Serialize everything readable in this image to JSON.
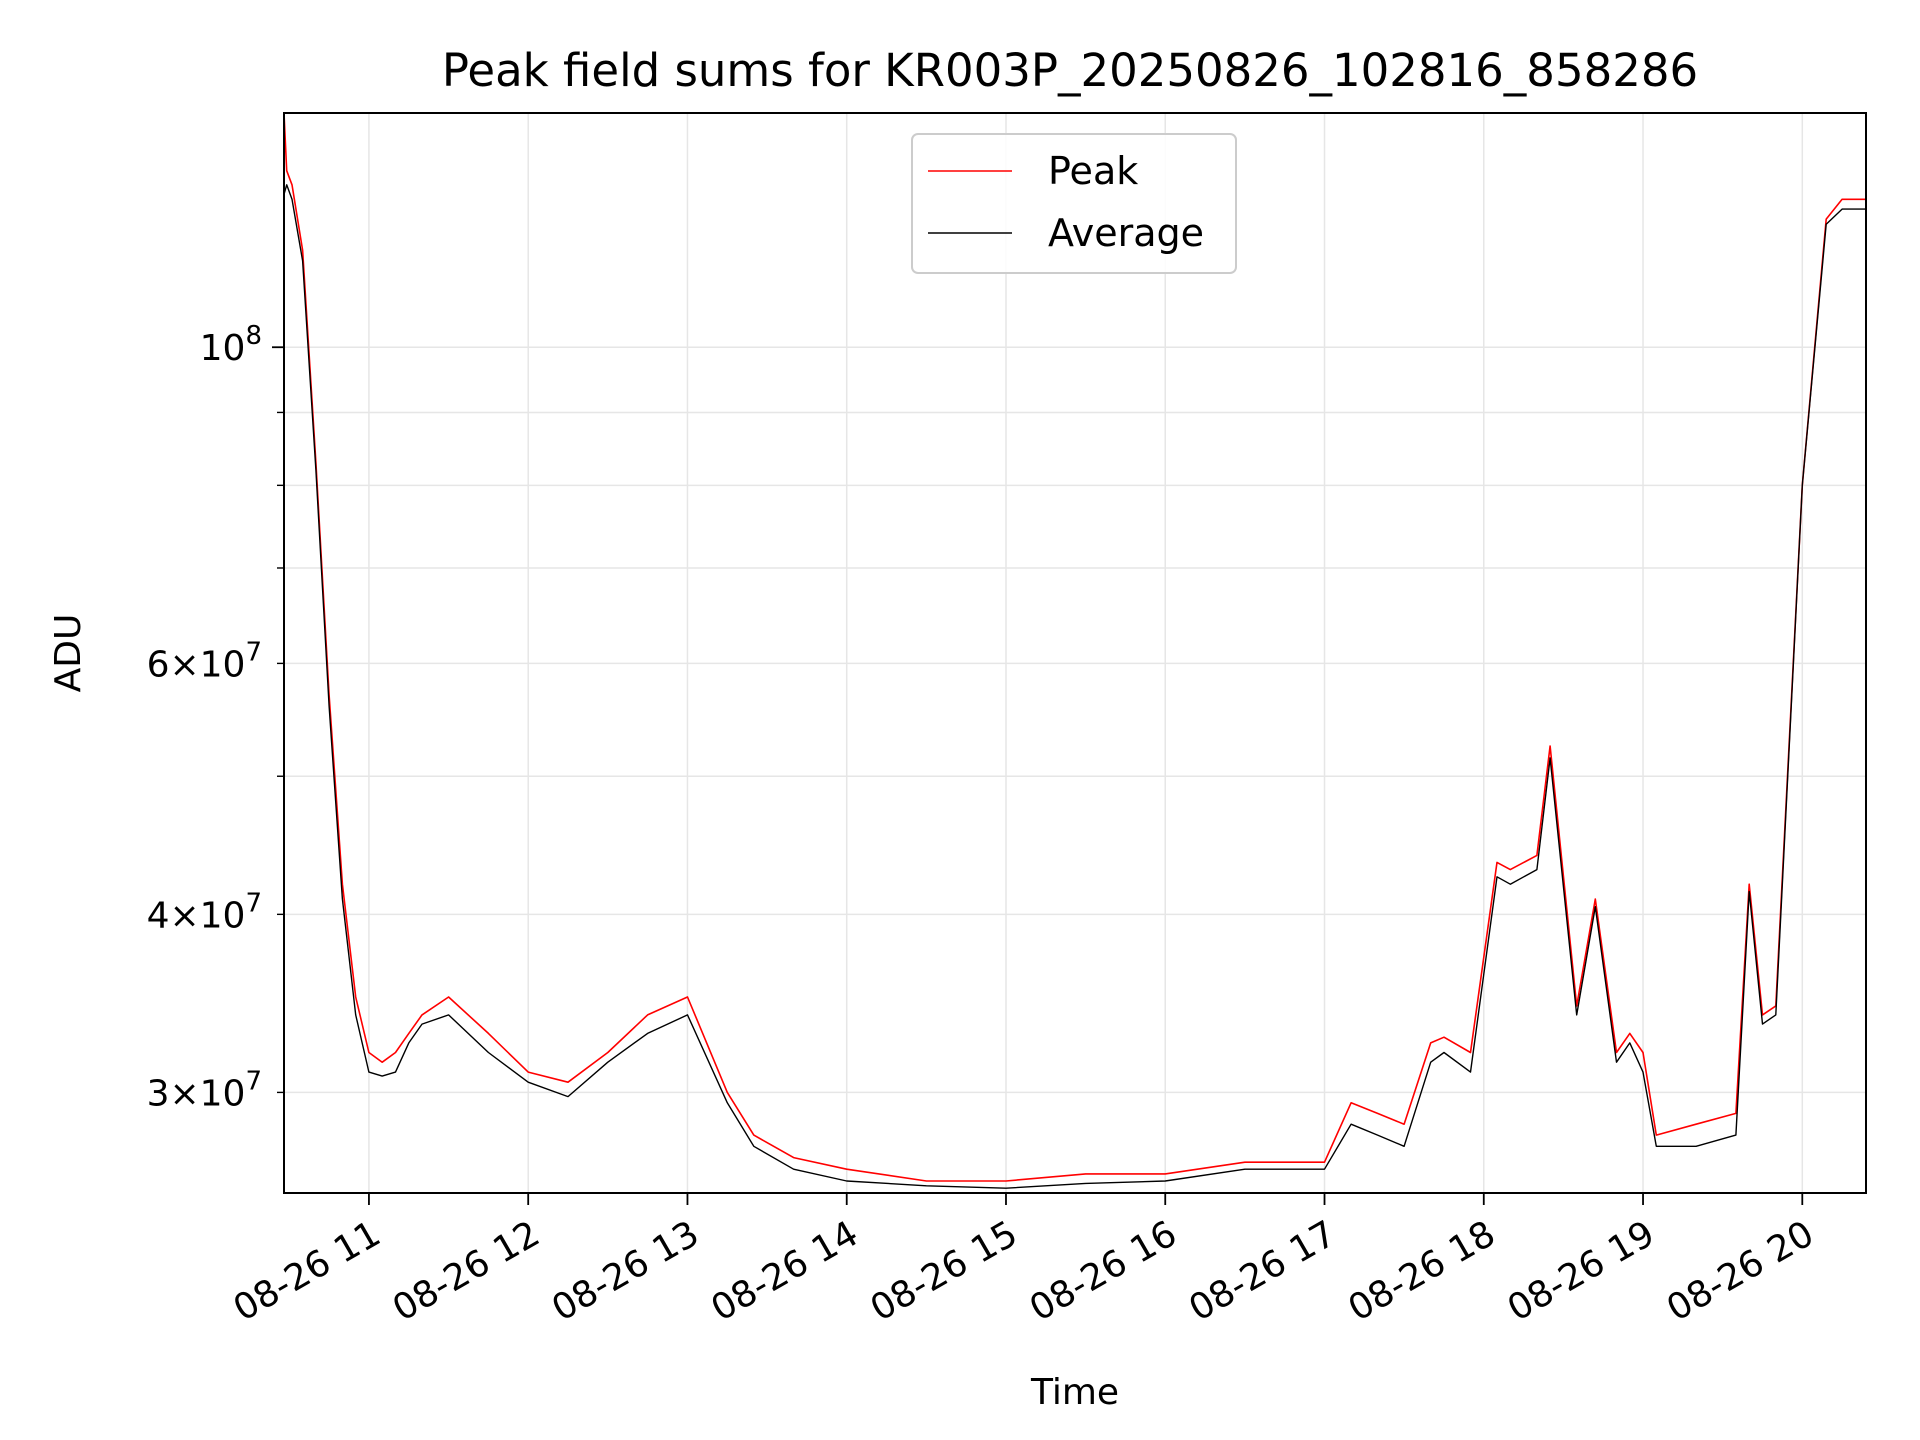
{
  "chart_data": {
    "type": "line",
    "title": "Peak field sums for KR003P_20250826_102816_858286",
    "xlabel": "Time",
    "ylabel": "ADU",
    "yscale": "log",
    "grid": true,
    "legend_position": "top-center",
    "x_tick_labels": [
      "08-26 11",
      "08-26 12",
      "08-26 13",
      "08-26 14",
      "08-26 15",
      "08-26 16",
      "08-26 17",
      "08-26 18",
      "08-26 19",
      "08-26 20"
    ],
    "y_tick_labels": [
      {
        "value": 30000000,
        "base": "3×10",
        "exp": "7"
      },
      {
        "value": 40000000,
        "base": "4×10",
        "exp": "7"
      },
      {
        "value": 60000000,
        "base": "6×10",
        "exp": "7"
      },
      {
        "value": 100000000,
        "base": "10",
        "exp": "8"
      }
    ],
    "xlim": [
      "2025-08-26 10:28",
      "2025-08-26 20:24"
    ],
    "ylim": [
      25500000,
      146000000
    ],
    "series": [
      {
        "name": "Peak",
        "color": "#ff0000",
        "x": [
          "2025-08-26 10:28",
          "2025-08-26 10:29",
          "2025-08-26 10:31",
          "2025-08-26 10:35",
          "2025-08-26 10:40",
          "2025-08-26 10:45",
          "2025-08-26 10:50",
          "2025-08-26 10:55",
          "2025-08-26 11:00",
          "2025-08-26 11:05",
          "2025-08-26 11:10",
          "2025-08-26 11:15",
          "2025-08-26 11:20",
          "2025-08-26 11:30",
          "2025-08-26 11:45",
          "2025-08-26 12:00",
          "2025-08-26 12:15",
          "2025-08-26 12:30",
          "2025-08-26 12:45",
          "2025-08-26 13:00",
          "2025-08-26 13:15",
          "2025-08-26 13:25",
          "2025-08-26 13:40",
          "2025-08-26 14:00",
          "2025-08-26 14:30",
          "2025-08-26 15:00",
          "2025-08-26 15:30",
          "2025-08-26 16:00",
          "2025-08-26 16:30",
          "2025-08-26 17:00",
          "2025-08-26 17:10",
          "2025-08-26 17:20",
          "2025-08-26 17:30",
          "2025-08-26 17:40",
          "2025-08-26 17:45",
          "2025-08-26 17:55",
          "2025-08-26 18:05",
          "2025-08-26 18:10",
          "2025-08-26 18:20",
          "2025-08-26 18:25",
          "2025-08-26 18:35",
          "2025-08-26 18:42",
          "2025-08-26 18:50",
          "2025-08-26 18:55",
          "2025-08-26 19:00",
          "2025-08-26 19:05",
          "2025-08-26 19:20",
          "2025-08-26 19:35",
          "2025-08-26 19:40",
          "2025-08-26 19:45",
          "2025-08-26 19:50",
          "2025-08-26 20:00",
          "2025-08-26 20:09",
          "2025-08-26 20:15",
          "2025-08-26 20:24"
        ],
        "y": [
          146000000,
          133000000,
          130000000,
          117000000,
          83000000,
          57000000,
          42000000,
          35000000,
          32000000,
          31500000,
          32000000,
          33000000,
          34000000,
          35000000,
          33000000,
          31000000,
          30500000,
          32000000,
          34000000,
          35000000,
          30000000,
          28000000,
          27000000,
          26500000,
          26000000,
          26000000,
          26300000,
          26300000,
          26800000,
          26800000,
          29500000,
          29000000,
          28500000,
          32500000,
          32800000,
          32000000,
          43500000,
          43000000,
          44000000,
          52500000,
          34500000,
          41000000,
          32000000,
          33000000,
          32000000,
          28000000,
          28500000,
          29000000,
          42000000,
          34000000,
          34500000,
          80000000,
          123000000,
          127000000,
          127000000
        ]
      },
      {
        "name": "Average",
        "color": "#000000",
        "x": [
          "2025-08-26 10:28",
          "2025-08-26 10:29",
          "2025-08-26 10:31",
          "2025-08-26 10:35",
          "2025-08-26 10:40",
          "2025-08-26 10:45",
          "2025-08-26 10:50",
          "2025-08-26 10:55",
          "2025-08-26 11:00",
          "2025-08-26 11:05",
          "2025-08-26 11:10",
          "2025-08-26 11:15",
          "2025-08-26 11:20",
          "2025-08-26 11:30",
          "2025-08-26 11:45",
          "2025-08-26 12:00",
          "2025-08-26 12:15",
          "2025-08-26 12:30",
          "2025-08-26 12:45",
          "2025-08-26 13:00",
          "2025-08-26 13:15",
          "2025-08-26 13:25",
          "2025-08-26 13:40",
          "2025-08-26 14:00",
          "2025-08-26 14:30",
          "2025-08-26 15:00",
          "2025-08-26 15:30",
          "2025-08-26 16:00",
          "2025-08-26 16:30",
          "2025-08-26 17:00",
          "2025-08-26 17:10",
          "2025-08-26 17:20",
          "2025-08-26 17:30",
          "2025-08-26 17:40",
          "2025-08-26 17:45",
          "2025-08-26 17:55",
          "2025-08-26 18:05",
          "2025-08-26 18:10",
          "2025-08-26 18:20",
          "2025-08-26 18:25",
          "2025-08-26 18:35",
          "2025-08-26 18:42",
          "2025-08-26 18:50",
          "2025-08-26 18:55",
          "2025-08-26 19:00",
          "2025-08-26 19:05",
          "2025-08-26 19:20",
          "2025-08-26 19:35",
          "2025-08-26 19:40",
          "2025-08-26 19:45",
          "2025-08-26 19:50",
          "2025-08-26 20:00",
          "2025-08-26 20:09",
          "2025-08-26 20:15",
          "2025-08-26 20:24"
        ],
        "y": [
          128000000,
          130000000,
          127000000,
          115000000,
          82000000,
          56000000,
          41000000,
          34000000,
          31000000,
          30800000,
          31000000,
          32500000,
          33500000,
          34000000,
          32000000,
          30500000,
          29800000,
          31500000,
          33000000,
          34000000,
          29500000,
          27500000,
          26500000,
          26000000,
          25800000,
          25700000,
          25900000,
          26000000,
          26500000,
          26500000,
          28500000,
          28000000,
          27500000,
          31500000,
          32000000,
          31000000,
          42500000,
          42000000,
          43000000,
          51500000,
          34000000,
          40500000,
          31500000,
          32500000,
          31000000,
          27500000,
          27500000,
          28000000,
          41500000,
          33500000,
          34000000,
          80000000,
          122000000,
          125000000,
          125000000
        ]
      }
    ]
  }
}
